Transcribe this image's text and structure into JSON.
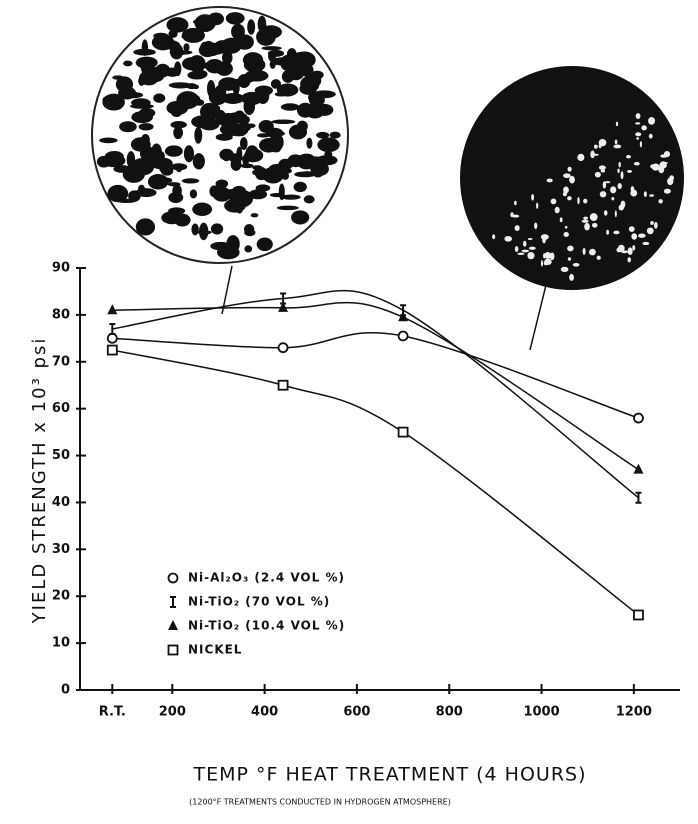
{
  "chart_data": {
    "type": "line",
    "x_label": "TEMP °F   HEAT TREATMENT (4 HOURS)",
    "note": "(1200°F TREATMENTS CONDUCTED IN HYDROGEN ATMOSPHERE)",
    "y_label": "YIELD STRENGTH x 10³ psi",
    "x": [
      70,
      440,
      700,
      1210
    ],
    "series": [
      {
        "name": "Ni-Al₂O₃ (2.4 VOL %)",
        "marker": "circle",
        "color": "#111",
        "values": [
          75,
          73,
          75.5,
          58
        ]
      },
      {
        "name": "Ni-TiO₂ (70 VOL %)",
        "marker": "bar",
        "color": "#111",
        "values": [
          77,
          83.5,
          81,
          41
        ]
      },
      {
        "name": "Ni-TiO₂ (10.4 VOL %)",
        "marker": "triangle",
        "color": "#111",
        "values": [
          81,
          81.5,
          79.5,
          47
        ]
      },
      {
        "name": "NICKEL",
        "marker": "square",
        "color": "#111",
        "values": [
          72.5,
          65,
          55,
          16
        ]
      }
    ],
    "xlim": [
      0,
      1300
    ],
    "xticks": [
      {
        "value": 70,
        "label": "R.T."
      },
      200,
      400,
      600,
      800,
      1000,
      1200
    ],
    "ylim": [
      0,
      90
    ],
    "yticks": [
      0,
      10,
      20,
      30,
      40,
      50,
      60,
      70,
      80,
      90
    ]
  }
}
